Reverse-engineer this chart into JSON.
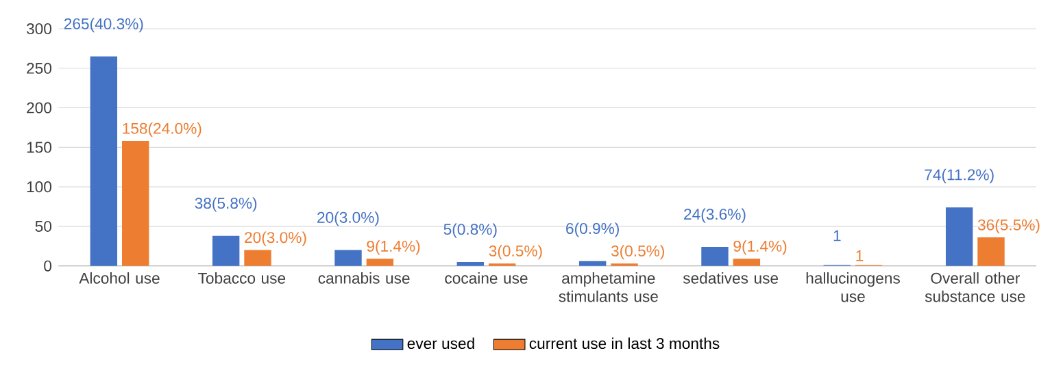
{
  "chart_data": {
    "type": "bar",
    "categories": [
      "Alcohol use",
      "Tobacco use",
      "cannabis use",
      "cocaine use",
      "amphetamine stimulants use",
      "sedatives use",
      "hallucinogens use",
      "Overall other substance use"
    ],
    "series": [
      {
        "name": "ever used",
        "color": "#4472c4",
        "values": [
          265,
          38,
          20,
          5,
          6,
          24,
          1,
          74
        ],
        "value_labels": [
          "265(40.3%)",
          "38(5.8%)",
          "20(3.0%)",
          "5(0.8%)",
          "6(0.9%)",
          "24(3.6%)",
          "1",
          "74(11.2%)"
        ]
      },
      {
        "name": "current use in last 3 months",
        "color": "#ed7d31",
        "values": [
          158,
          20,
          9,
          3,
          3,
          9,
          1,
          36
        ],
        "value_labels": [
          "158(24.0%)",
          "20(3.0%)",
          "9(1.4%)",
          "3(0.5%)",
          "3(0.5%)",
          "9(1.4%)",
          "1",
          "36(5.5%)"
        ]
      }
    ],
    "ylim": [
      0,
      300
    ],
    "yticks": [
      0,
      50,
      100,
      150,
      200,
      250,
      300
    ],
    "grid": "y",
    "legend": "bottom"
  }
}
